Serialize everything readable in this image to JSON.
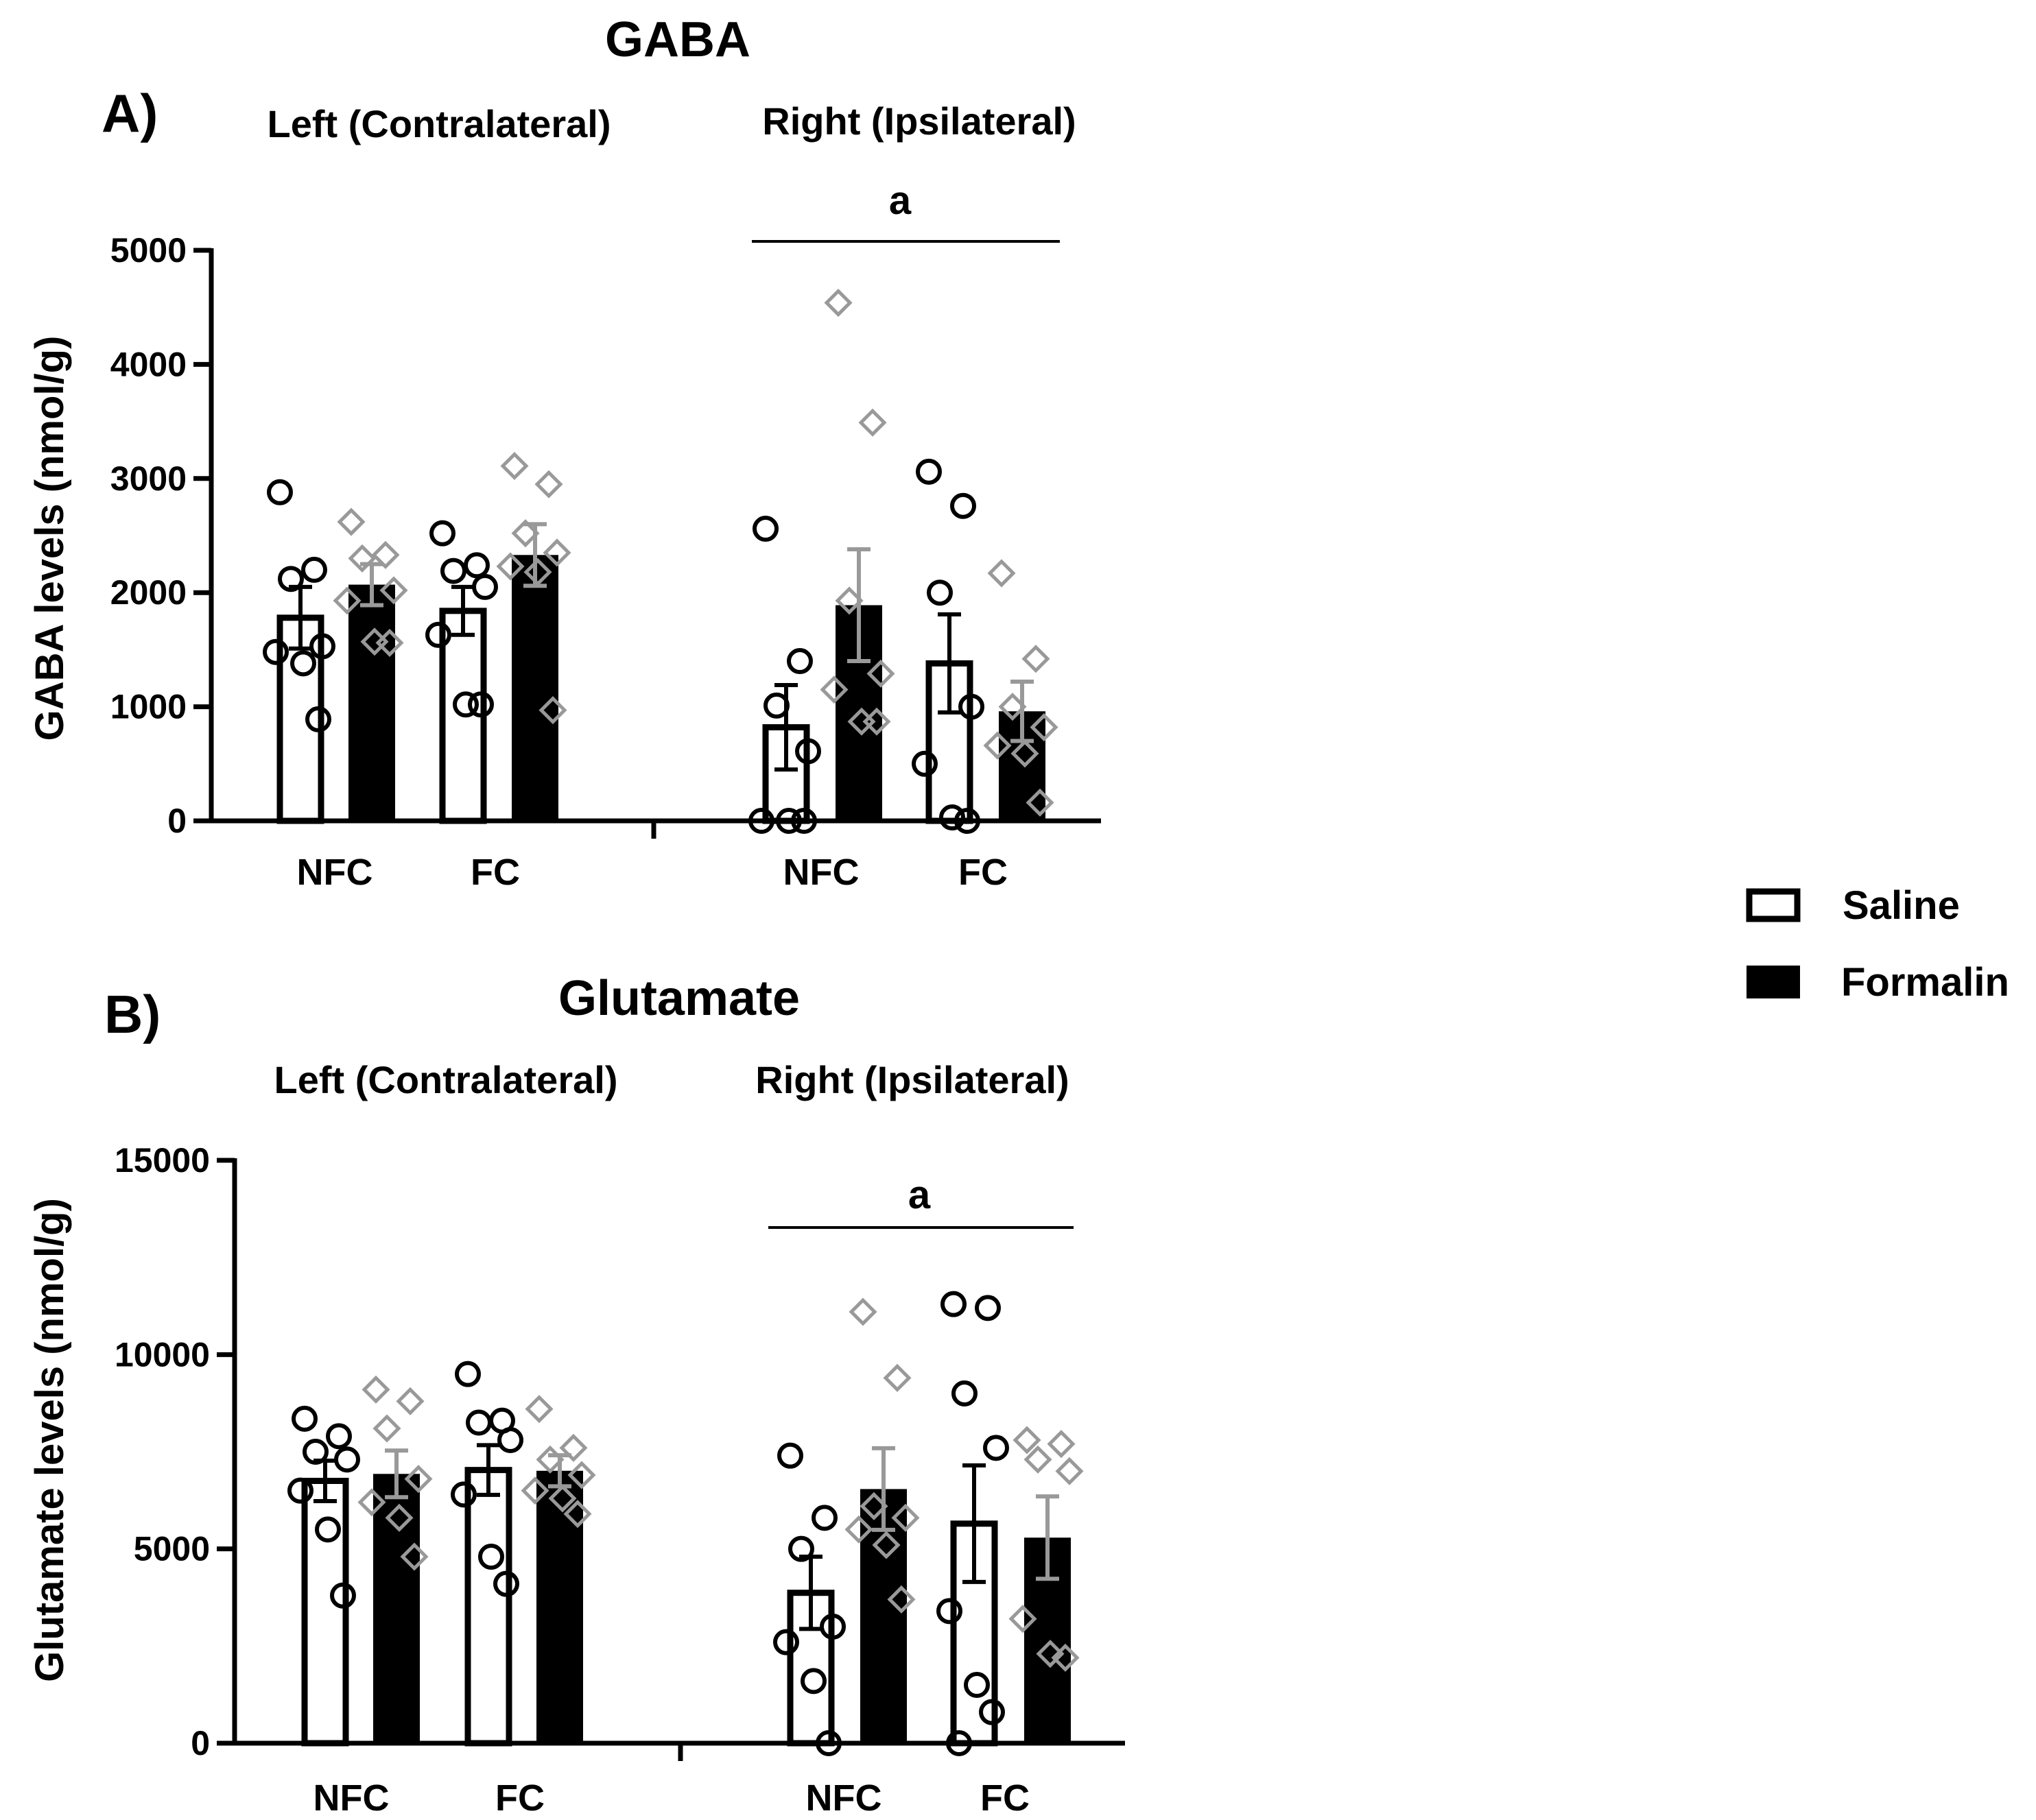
{
  "legend": {
    "items": [
      {
        "label": "Saline",
        "fill": "#ffffff",
        "stroke": "#000000"
      },
      {
        "label": "Formalin",
        "fill": "#000000",
        "stroke": "#000000"
      }
    ]
  },
  "colors": {
    "saline_points": "#000000",
    "formalin_points": "#999999",
    "bar_stroke": "#000000"
  },
  "chart_data": [
    {
      "type": "bar",
      "panel": "A)",
      "title": "GABA",
      "ylabel": "GABA levels  (nmol/g)",
      "ylim": [
        0,
        5000
      ],
      "yticks": [
        0,
        1000,
        2000,
        3000,
        4000,
        5000
      ],
      "groups": [
        "Left (Contralateral)",
        "Right (Ipsilateral)"
      ],
      "categories": [
        "NFC",
        "FC",
        "NFC",
        "FC"
      ],
      "significance": {
        "label": "a",
        "group": "Right (Ipsilateral)"
      },
      "series": [
        {
          "name": "Saline",
          "values": [
            1780,
            1840,
            820,
            1380
          ],
          "sem": [
            270,
            210,
            370,
            430
          ],
          "points": [
            [
              2880,
              2200,
              2120,
              1530,
              1480,
              1380,
              890
            ],
            [
              2520,
              2240,
              2190,
              2050,
              1630,
              1020,
              1020
            ],
            [
              2560,
              1400,
              1010,
              610,
              0,
              0,
              0
            ],
            [
              3060,
              2760,
              2000,
              1000,
              500,
              30,
              0
            ]
          ]
        },
        {
          "name": "Formalin",
          "values": [
            2070,
            2330,
            1890,
            960
          ],
          "sem": [
            180,
            270,
            490,
            260
          ],
          "points": [
            [
              2620,
              2330,
              2300,
              2020,
              1930,
              1570,
              1560
            ],
            [
              3110,
              2950,
              2520,
              2350,
              2230,
              2180,
              970
            ],
            [
              4540,
              3490,
              1930,
              1290,
              1150,
              870,
              870
            ],
            [
              2170,
              1420,
              1000,
              820,
              660,
              590,
              160
            ]
          ]
        }
      ]
    },
    {
      "type": "bar",
      "panel": "B)",
      "title": "Glutamate",
      "ylabel": "Glutamate levels  (nmol/g)",
      "ylim": [
        0,
        15000
      ],
      "yticks": [
        0,
        5000,
        10000,
        15000
      ],
      "groups": [
        "Left (Contralateral)",
        "Right (Ipsilateral)"
      ],
      "categories": [
        "NFC",
        "FC",
        "NFC",
        "FC"
      ],
      "significance": {
        "label": "a",
        "group": "Right (Ipsilateral)"
      },
      "series": [
        {
          "name": "Saline",
          "values": [
            6750,
            7030,
            3870,
            5650
          ],
          "sem": [
            520,
            640,
            930,
            1500
          ],
          "points": [
            [
              8350,
              7900,
              7500,
              7300,
              6500,
              5500,
              3800
            ],
            [
              9500,
              8300,
              8250,
              7800,
              6400,
              4800,
              4100
            ],
            [
              7400,
              5800,
              5000,
              3000,
              2600,
              1600,
              0
            ],
            [
              11300,
              11200,
              9000,
              7600,
              3400,
              1500,
              800,
              0
            ]
          ]
        },
        {
          "name": "Formalin",
          "values": [
            6930,
            7010,
            6540,
            5290
          ],
          "sem": [
            600,
            400,
            1050,
            1060
          ],
          "points": [
            [
              9100,
              8800,
              8100,
              6800,
              6200,
              5800,
              4800
            ],
            [
              8600,
              7600,
              7300,
              6900,
              6500,
              6300,
              5900
            ],
            [
              11100,
              9400,
              6100,
              5800,
              5500,
              5100,
              3700
            ],
            [
              7800,
              7700,
              7300,
              7000,
              3200,
              2300,
              2200
            ]
          ]
        }
      ]
    }
  ]
}
